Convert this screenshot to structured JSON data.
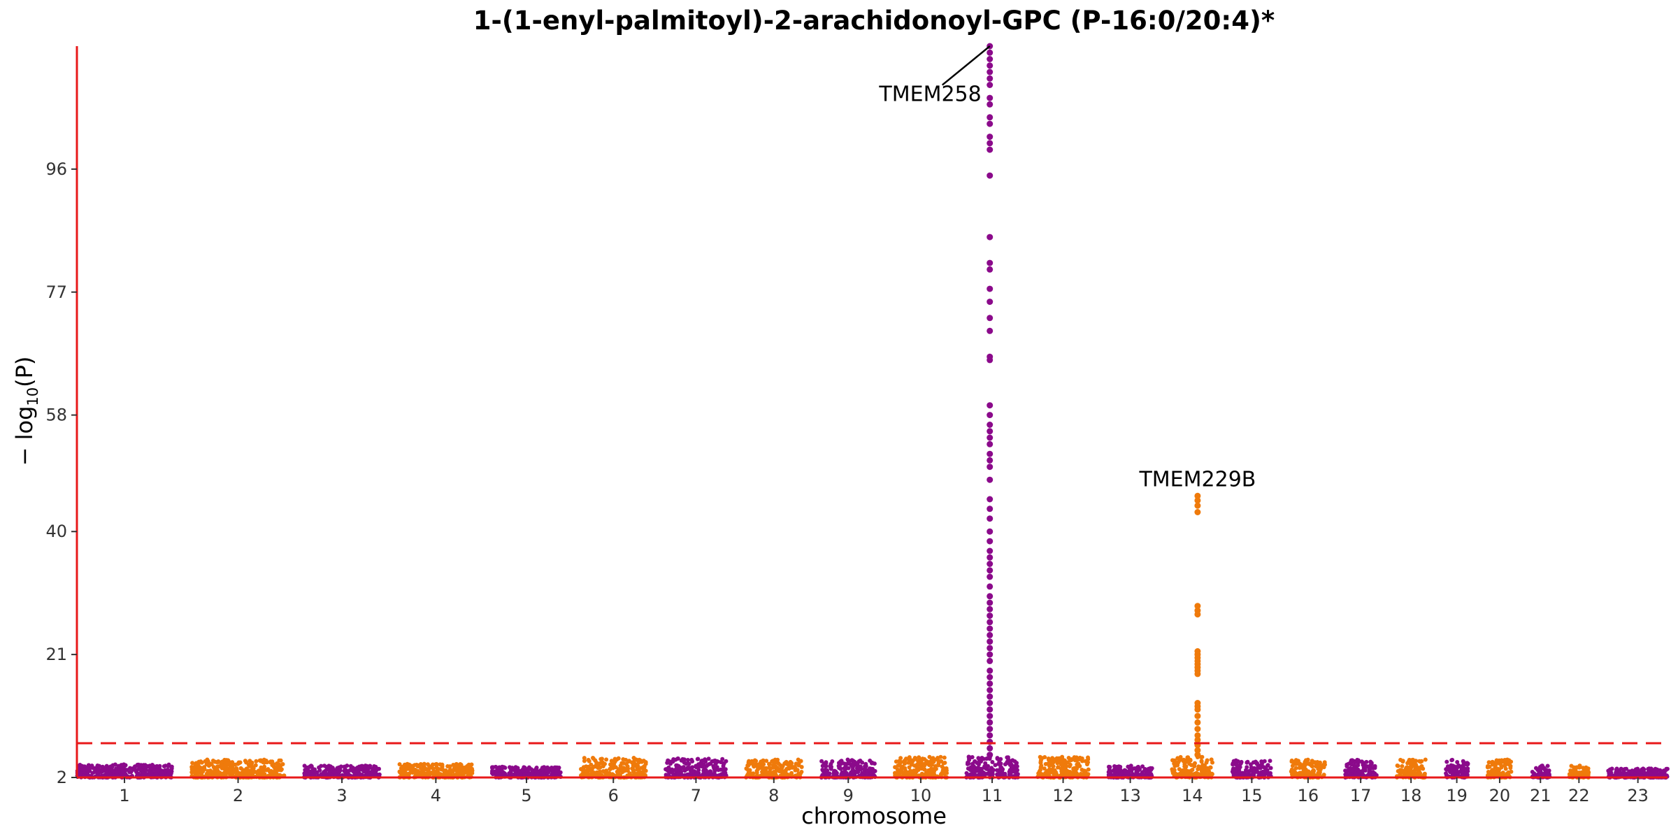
{
  "chart_data": {
    "type": "scatter",
    "subtype": "manhattan",
    "title": "1-(1-enyl-palmitoyl)-2-arachidonoyl-GPC (P-16:0/20:4)*",
    "xlabel": "chromosome",
    "ylabel": "− log10(P)",
    "ylabel_parts": {
      "prefix": "− log",
      "sub": "10",
      "suffix": "(P)"
    },
    "yticks": [
      2,
      21,
      40,
      58,
      77,
      96
    ],
    "ylim": [
      2,
      115
    ],
    "threshold": {
      "value": 7.3,
      "style": "dashed",
      "color": "#e8191a"
    },
    "colors": {
      "odd": "#8b0a8b",
      "even": "#ef7a0b",
      "axis": "#e8191a"
    },
    "grid": false,
    "legend": "none",
    "chromosomes": [
      {
        "name": "1",
        "length": 249,
        "max": 4.2
      },
      {
        "name": "2",
        "length": 243,
        "max": 5.0
      },
      {
        "name": "3",
        "length": 198,
        "max": 4.0
      },
      {
        "name": "4",
        "length": 191,
        "max": 4.3
      },
      {
        "name": "5",
        "length": 181,
        "max": 3.8
      },
      {
        "name": "6",
        "length": 171,
        "max": 5.3
      },
      {
        "name": "7",
        "length": 159,
        "max": 5.2
      },
      {
        "name": "8",
        "length": 146,
        "max": 5.0
      },
      {
        "name": "9",
        "length": 141,
        "max": 5.0
      },
      {
        "name": "10",
        "length": 136,
        "max": 6.0
      },
      {
        "name": "11",
        "length": 135,
        "max": 115
      },
      {
        "name": "12",
        "length": 134,
        "max": 6.0
      },
      {
        "name": "13",
        "length": 115,
        "max": 4.0
      },
      {
        "name": "14",
        "length": 107,
        "max": 45
      },
      {
        "name": "15",
        "length": 102,
        "max": 5.0
      },
      {
        "name": "16",
        "length": 90,
        "max": 5.0
      },
      {
        "name": "17",
        "length": 83,
        "max": 5.0
      },
      {
        "name": "18",
        "length": 78,
        "max": 5.0
      },
      {
        "name": "19",
        "length": 59,
        "max": 5.0
      },
      {
        "name": "20",
        "length": 63,
        "max": 5.0
      },
      {
        "name": "21",
        "length": 48,
        "max": 4.0
      },
      {
        "name": "22",
        "length": 51,
        "max": 4.0
      },
      {
        "name": "23",
        "length": 155,
        "max": 3.5
      }
    ],
    "peaks": [
      {
        "label": "TMEM258",
        "chromosome": "11",
        "position": 61.5,
        "values": [
          115,
          114,
          113,
          112,
          111,
          110,
          109,
          107,
          106,
          104,
          103,
          101,
          100,
          99,
          95,
          85.5,
          81.5,
          80.5,
          77.5,
          75.5,
          73,
          71,
          67,
          66.5,
          59.5,
          58,
          56.5,
          55.5,
          54.5,
          53.5,
          52,
          51,
          50,
          48,
          45,
          43.5,
          42,
          40,
          38.5,
          37,
          36,
          35,
          34,
          33,
          31.5,
          30,
          29,
          28,
          27,
          26,
          25,
          24,
          23,
          22,
          21,
          20,
          18.5,
          17.5,
          16.5,
          15.5,
          14.5,
          13.5,
          12.5,
          11.5,
          10.5,
          9.5,
          8.5,
          7.5,
          6.5,
          5.5
        ]
      },
      {
        "label": "TMEM229B",
        "chromosome": "14",
        "position": 67.5,
        "values": [
          45.5,
          44.8,
          44,
          43,
          28.5,
          27.8,
          27.2,
          21.5,
          21,
          20.5,
          20,
          19.5,
          19,
          18.5,
          18,
          13.5,
          13,
          12.5,
          11.5,
          10.5,
          9.5,
          8.5,
          7.8,
          7,
          6.2,
          5.5
        ]
      }
    ]
  }
}
